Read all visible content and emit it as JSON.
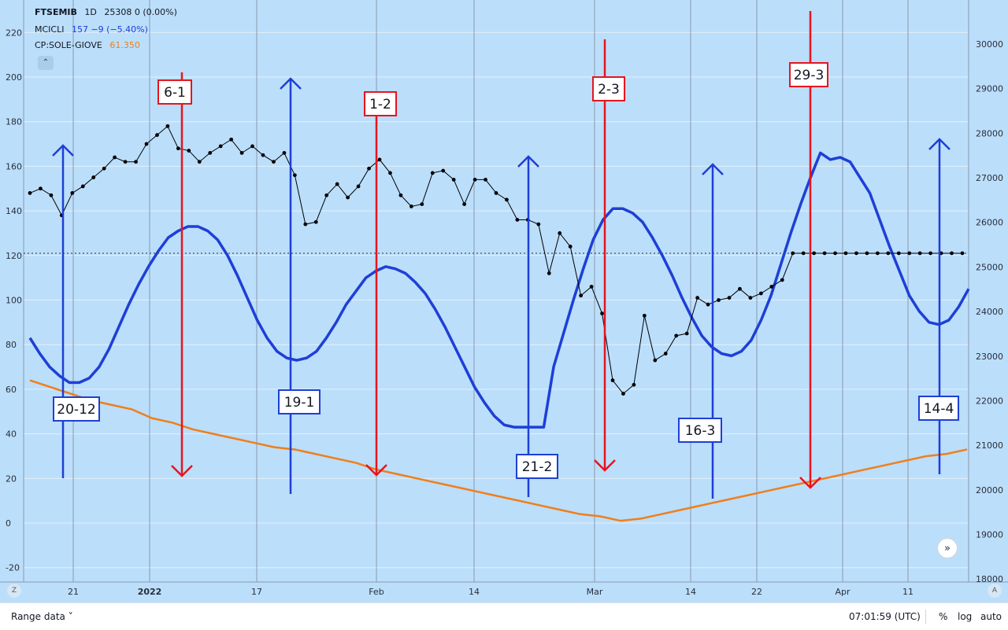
{
  "legend": {
    "main": {
      "symbol": "FTSEMIB",
      "interval": "1D",
      "values": "25308  0 (0.00%)"
    },
    "cicli": {
      "name": "MCICLI",
      "values": "157  −9 (−5.40%)",
      "color": "#1e3fd6"
    },
    "sole": {
      "name": "CP:SOLE-GIOVE",
      "values": "61.350",
      "color": "#ef7f1a"
    },
    "collapse_icon": "chevron-up-icon"
  },
  "toolbar": {
    "range_label": "Range data ˅",
    "time": "07:01:59 (UTC)",
    "percent_label": "%",
    "log_label": "log",
    "auto_label": "auto",
    "corner_left": "Z",
    "corner_right": "A",
    "scroll_icon": "double-chevron-right-icon",
    "scroll_glyph": "»"
  },
  "chart_data": {
    "type": "line",
    "left_axis": {
      "ticks": [
        "220",
        "200",
        "180",
        "160",
        "140",
        "120",
        "100",
        "80",
        "60",
        "40",
        "20",
        "0",
        "-20"
      ]
    },
    "right_axis": {
      "ticks": [
        "30000",
        "29000",
        "28000",
        "27000",
        "26000",
        "25000",
        "24000",
        "23000",
        "22000",
        "21000",
        "20000",
        "19000",
        "18000"
      ]
    },
    "x_axis": {
      "ticks": [
        "21",
        "2022",
        "17",
        "Feb",
        "14",
        "Mar",
        "14",
        "22",
        "Apr",
        "11"
      ]
    },
    "reference_line": 121,
    "series": [
      {
        "name": "FTSEMIB",
        "color": "#000000",
        "values": [
          148,
          150,
          147,
          138,
          148,
          151,
          155,
          159,
          164,
          162,
          162,
          170,
          174,
          178,
          168,
          167,
          162,
          166,
          169,
          172,
          166,
          169,
          165,
          162,
          166,
          156,
          134,
          135,
          147,
          152,
          146,
          151,
          159,
          163,
          157,
          147,
          142,
          143,
          157,
          158,
          154,
          143,
          154,
          154,
          148,
          145,
          136,
          136,
          134,
          112,
          130,
          124,
          102,
          106,
          94,
          64,
          58,
          62,
          93,
          73,
          76,
          84,
          85,
          101,
          98,
          100,
          101,
          105,
          101,
          103,
          106,
          109,
          121,
          121,
          121,
          121,
          121,
          121,
          121,
          121,
          121,
          121,
          121,
          121,
          121,
          121,
          121,
          121,
          121
        ]
      },
      {
        "name": "MCICLI",
        "color": "#1e3fd6",
        "values": [
          83,
          76,
          70,
          66,
          63,
          63,
          65,
          70,
          78,
          88,
          98,
          107,
          115,
          122,
          128,
          131,
          133,
          133,
          131,
          127,
          120,
          111,
          101,
          91,
          83,
          77,
          74,
          73,
          74,
          77,
          83,
          90,
          98,
          104,
          110,
          113,
          115,
          114,
          112,
          108,
          103,
          96,
          88,
          79,
          70,
          61,
          54,
          48,
          44,
          43,
          43,
          43,
          43,
          70,
          85,
          100,
          114,
          127,
          136,
          141,
          141,
          139,
          135,
          128,
          120,
          111,
          101,
          92,
          84,
          79,
          76,
          75,
          77,
          82,
          91,
          102,
          116,
          130,
          143,
          155,
          166,
          163,
          164,
          162,
          155,
          148,
          136,
          124,
          113,
          102,
          95,
          90,
          89,
          91,
          97,
          105
        ]
      },
      {
        "name": "CP:SOLE-GIOVE",
        "color": "#ef7f1a",
        "values": [
          64,
          61,
          58,
          55,
          53,
          51,
          47,
          45,
          42,
          40,
          38,
          36,
          34,
          33,
          31,
          29,
          27,
          24,
          22,
          20,
          18,
          16,
          14,
          12,
          10,
          8,
          6,
          4,
          3,
          1,
          2,
          4,
          6,
          8,
          10,
          12,
          14,
          16,
          18,
          20,
          22,
          24,
          26,
          28,
          30,
          31,
          33
        ]
      }
    ],
    "arrows": [
      {
        "label": "20-12",
        "color": "#1e3fd6",
        "direction": "up"
      },
      {
        "label": "6-1",
        "color": "#e8141d",
        "direction": "down"
      },
      {
        "label": "19-1",
        "color": "#1e3fd6",
        "direction": "up"
      },
      {
        "label": "1-2",
        "color": "#e8141d",
        "direction": "down"
      },
      {
        "label": "21-2",
        "color": "#1e3fd6",
        "direction": "up"
      },
      {
        "label": "2-3",
        "color": "#e8141d",
        "direction": "down"
      },
      {
        "label": "16-3",
        "color": "#1e3fd6",
        "direction": "up"
      },
      {
        "label": "29-3",
        "color": "#e8141d",
        "direction": "down"
      },
      {
        "label": "14-4",
        "color": "#1e3fd6",
        "direction": "up"
      }
    ]
  }
}
